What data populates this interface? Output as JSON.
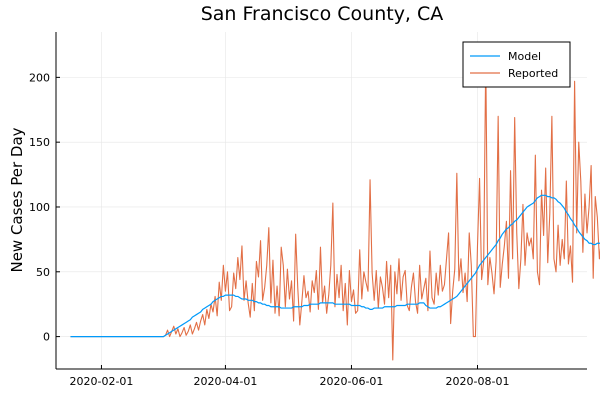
{
  "chart_data": {
    "type": "line",
    "title": "San Francisco County, CA",
    "xlabel": "",
    "ylabel": "New Cases Per Day",
    "x_start": "2020-01-17",
    "x_end": "2020-09-19",
    "xlim": [
      "2020-01-10",
      "2020-09-23"
    ],
    "ylim": [
      -25,
      235
    ],
    "x_ticks": [
      "2020-02-01",
      "2020-04-01",
      "2020-06-01",
      "2020-08-01"
    ],
    "y_ticks": [
      0,
      50,
      100,
      150,
      200
    ],
    "grid": true,
    "legend_position": "top-right",
    "series": [
      {
        "name": "Model",
        "color": "#009AFA",
        "values": [
          0,
          0,
          0,
          0,
          0,
          0,
          0,
          0,
          0,
          0,
          0,
          0,
          0,
          0,
          0,
          0,
          0,
          0,
          0,
          0,
          0,
          0,
          0,
          0,
          0,
          0,
          0,
          0,
          0,
          0,
          0,
          0,
          0,
          0,
          0,
          0,
          0,
          0,
          0,
          0,
          0,
          0,
          0,
          0,
          0,
          0,
          1,
          2,
          3,
          4,
          5,
          6,
          7,
          8,
          9,
          10,
          11,
          12,
          13,
          15,
          16,
          17,
          18,
          19,
          21,
          22,
          23,
          24,
          25,
          27,
          28,
          29,
          30,
          31,
          31,
          32,
          32,
          32,
          32,
          32,
          31,
          31,
          30,
          29,
          29,
          29,
          28,
          28,
          28,
          27,
          27,
          26,
          26,
          25,
          25,
          24,
          24,
          23,
          23,
          23,
          23,
          23,
          22,
          22,
          22,
          22,
          22,
          22,
          23,
          23,
          23,
          23,
          23,
          24,
          24,
          24,
          25,
          25,
          25,
          25,
          25,
          26,
          26,
          26,
          26,
          26,
          26,
          26,
          25,
          25,
          25,
          25,
          25,
          25,
          25,
          25,
          24,
          24,
          24,
          24,
          24,
          23,
          23,
          22,
          22,
          21,
          21,
          22,
          22,
          22,
          22,
          22,
          23,
          23,
          23,
          23,
          23,
          23,
          24,
          24,
          24,
          24,
          24,
          25,
          25,
          25,
          25,
          25,
          25,
          26,
          26,
          26,
          24,
          23,
          22,
          22,
          22,
          22,
          23,
          23,
          24,
          25,
          26,
          27,
          28,
          29,
          30,
          31,
          33,
          35,
          37,
          39,
          41,
          43,
          45,
          47,
          49,
          52,
          55,
          57,
          59,
          61,
          63,
          65,
          67,
          69,
          71,
          74,
          76,
          79,
          81,
          83,
          84,
          86,
          87,
          89,
          90,
          92,
          94,
          96,
          98,
          100,
          101,
          102,
          103,
          105,
          107,
          108,
          109,
          109,
          109,
          108,
          108,
          107,
          107,
          106,
          104,
          103,
          101,
          99,
          96,
          94,
          91,
          89,
          86,
          84,
          81,
          79,
          77,
          75,
          74,
          72,
          72,
          71,
          71,
          72,
          72,
          72,
          72,
          73,
          73,
          73,
          73,
          73,
          73,
          72,
          71,
          70,
          68,
          66,
          64,
          62,
          61,
          60,
          59,
          58,
          58,
          58,
          58,
          58,
          59
        ]
      },
      {
        "name": "Reported",
        "color": "#E26F46",
        "values": [
          0,
          0,
          0,
          0,
          0,
          0,
          0,
          0,
          0,
          0,
          0,
          0,
          0,
          0,
          0,
          0,
          0,
          0,
          0,
          0,
          0,
          0,
          0,
          0,
          0,
          0,
          0,
          0,
          0,
          0,
          0,
          0,
          0,
          0,
          0,
          0,
          0,
          0,
          0,
          0,
          0,
          0,
          0,
          0,
          0,
          0,
          1,
          5,
          0,
          4,
          8,
          2,
          6,
          0,
          3,
          7,
          1,
          4,
          9,
          2,
          6,
          11,
          5,
          12,
          17,
          9,
          21,
          14,
          25,
          19,
          31,
          16,
          42,
          28,
          55,
          35,
          50,
          20,
          23,
          49,
          37,
          61,
          44,
          70,
          28,
          43,
          26,
          15,
          41,
          20,
          58,
          46,
          74,
          28,
          38,
          55,
          84,
          26,
          59,
          18,
          39,
          16,
          69,
          55,
          23,
          52,
          29,
          43,
          12,
          79,
          38,
          9,
          27,
          47,
          30,
          35,
          19,
          43,
          34,
          51,
          21,
          69,
          26,
          39,
          18,
          32,
          55,
          103,
          23,
          48,
          30,
          55,
          20,
          41,
          9,
          51,
          27,
          36,
          18,
          20,
          67,
          29,
          50,
          42,
          35,
          121,
          49,
          28,
          51,
          22,
          46,
          38,
          25,
          58,
          30,
          55,
          -18,
          50,
          33,
          60,
          28,
          46,
          51,
          24,
          20,
          38,
          49,
          27,
          18,
          55,
          29,
          37,
          45,
          20,
          66,
          30,
          25,
          49,
          32,
          55,
          35,
          40,
          60,
          80,
          10,
          35,
          52,
          126,
          43,
          60,
          34,
          49,
          27,
          80,
          55,
          0,
          0,
          70,
          122,
          44,
          58,
          215,
          40,
          61,
          49,
          33,
          58,
          170,
          38,
          56,
          70,
          89,
          45,
          128,
          60,
          169,
          80,
          37,
          60,
          102,
          55,
          80,
          70,
          76,
          60,
          140,
          50,
          40,
          113,
          78,
          130,
          57,
          95,
          170,
          60,
          50,
          86,
          55,
          75,
          60,
          120,
          56,
          70,
          42,
          197,
          80,
          150,
          120,
          65,
          110,
          80,
          100,
          132,
          45,
          108,
          92,
          60,
          75,
          125,
          48,
          68,
          55,
          82,
          60,
          145,
          38,
          90,
          53,
          75,
          45,
          98,
          58,
          80,
          100,
          73,
          55,
          45,
          90,
          63,
          72,
          65,
          56,
          72,
          88,
          0,
          84,
          45,
          62,
          50,
          60,
          95,
          51,
          55,
          76,
          40,
          68,
          75,
          60,
          55,
          78,
          63,
          70,
          48,
          62
        ]
      }
    ]
  }
}
